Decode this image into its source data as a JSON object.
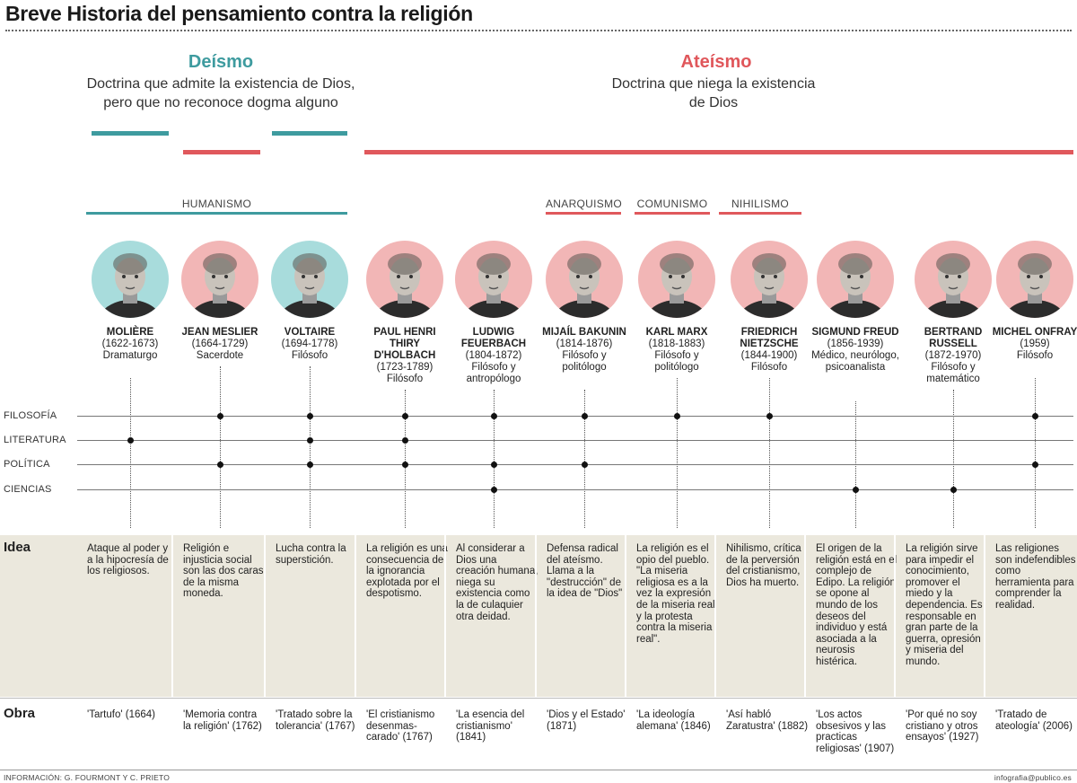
{
  "title": "Breve Historia del pensamiento contra la religión",
  "deismo": {
    "heading": "Deísmo",
    "desc_line1": "Doctrina que admite la existencia de Dios,",
    "desc_line2": "pero que no reconoce dogma alguno",
    "color": "#3e9b9f"
  },
  "ateismo": {
    "heading": "Ateísmo",
    "desc_line1": "Doctrina que niega la existencia",
    "desc_line2": "de Dios",
    "color": "#e0585c"
  },
  "movements": {
    "humanismo": "HUMANISMO",
    "anarquismo": "ANARQUISMO",
    "comunismo": "COMUNISMO",
    "nihilismo": "NIHILISMO"
  },
  "categories": [
    "FILOSOFÍA",
    "LITERATURA",
    "POLÍTICA",
    "CIENCIAS"
  ],
  "row_heads": {
    "idea": "Idea",
    "obra": "Obra"
  },
  "people": [
    {
      "name": "MOLIÈRE",
      "dates": "(1622-1673)",
      "role": "Dramaturgo",
      "group": "deismo",
      "fields": [
        "LITERATURA"
      ],
      "idea": "Ataque al poder y a la hipocresía de los religiosos.",
      "obra": "'Tartufo' (1664)"
    },
    {
      "name": "JEAN MESLIER",
      "dates": "(1664-1729)",
      "role": "Sacerdote",
      "group": "ateismo",
      "fields": [
        "FILOSOFÍA",
        "POLÍTICA"
      ],
      "idea": "Religión e injusticia social son las dos caras de la misma moneda.",
      "obra": "'Memoria contra la religión' (1762)"
    },
    {
      "name": "VOLTAIRE",
      "dates": "(1694-1778)",
      "role": "Filósofo",
      "group": "deismo",
      "fields": [
        "FILOSOFÍA",
        "LITERATURA",
        "POLÍTICA"
      ],
      "idea": "Lucha contra la superstición.",
      "obra": "'Tratado sobre la tolerancia' (1767)"
    },
    {
      "name": "PAUL HENRI THIRY D'HOLBACH",
      "dates": "(1723-1789)",
      "role": "Filósofo",
      "group": "ateismo",
      "fields": [
        "FILOSOFÍA",
        "LITERATURA",
        "POLÍTICA"
      ],
      "idea": "La religión es una consecuencia de la ignorancia explotada por el despotismo.",
      "obra": "'El cristianismo desenmas-carado' (1767)"
    },
    {
      "name": "LUDWIG FEUERBACH",
      "dates": "(1804-1872)",
      "role": "Filósofo y antropólogo",
      "group": "ateismo",
      "fields": [
        "FILOSOFÍA",
        "POLÍTICA",
        "CIENCIAS"
      ],
      "idea": "Al considerar a Dios una creación humana, niega su existencia como la de culaquier otra deidad.",
      "obra": "'La esencia del cristianismo' (1841)"
    },
    {
      "name": "MIJAÍL BAKUNIN",
      "dates": "(1814-1876)",
      "role": "Filósofo y politólogo",
      "group": "ateismo",
      "fields": [
        "FILOSOFÍA",
        "POLÍTICA"
      ],
      "idea": "Defensa radical del ateísmo. Llama a la \"destrucción\" de la idea de \"Dios\"",
      "obra": "'Dios y el Estado' (1871)"
    },
    {
      "name": "KARL MARX",
      "dates": "(1818-1883)",
      "role": "Filósofo y politólogo",
      "group": "ateismo",
      "fields": [
        "FILOSOFÍA"
      ],
      "idea": "La religión es el opio del pueblo. \"La miseria religiosa es a la vez la expresión de la miseria real y la protesta contra la miseria real\".",
      "obra": "'La ideología alemana' (1846)"
    },
    {
      "name": "FRIEDRICH NIETZSCHE",
      "dates": "(1844-1900)",
      "role": "Filósofo",
      "group": "ateismo",
      "fields": [
        "FILOSOFÍA"
      ],
      "idea": "Nihilismo, crítica de la perversión del cristianismo, Dios ha muerto.",
      "obra": "'Así habló Zaratustra' (1882)"
    },
    {
      "name": "SIGMUND FREUD",
      "dates": "(1856-1939)",
      "role": "Médico, neurólogo, psicoanalista",
      "group": "ateismo",
      "fields": [
        "CIENCIAS"
      ],
      "idea": "El origen de la religión está en el complejo de Edipo. La religión se opone al mundo de los deseos del individuo y está asociada a la neurosis histérica.",
      "obra": "'Los actos obsesivos y las practicas religiosas' (1907)"
    },
    {
      "name": "BERTRAND RUSSELL",
      "dates": "(1872-1970)",
      "role": "Filósofo y matemático",
      "group": "ateismo",
      "fields": [
        "CIENCIAS"
      ],
      "idea": "La religión sirve para impedir el conocimiento, promover el miedo y la dependencia. Es responsable en gran parte de la guerra, opresión y miseria del mundo.",
      "obra": "'Por qué no soy cristiano y otros ensayos' (1927)"
    },
    {
      "name": "MICHEL ONFRAY",
      "dates": "(1959)",
      "role": "Filósofo",
      "group": "ateismo",
      "fields": [
        "FILOSOFÍA",
        "POLÍTICA"
      ],
      "idea": "Las religiones son indefendibles como herramienta para comprender la realidad.",
      "obra": "'Tratado de ateología' (2006)"
    }
  ],
  "credits": {
    "left": "INFORMACIÓN: G. FOURMONT Y C. PRIETO",
    "right": "infografia@publico.es"
  }
}
